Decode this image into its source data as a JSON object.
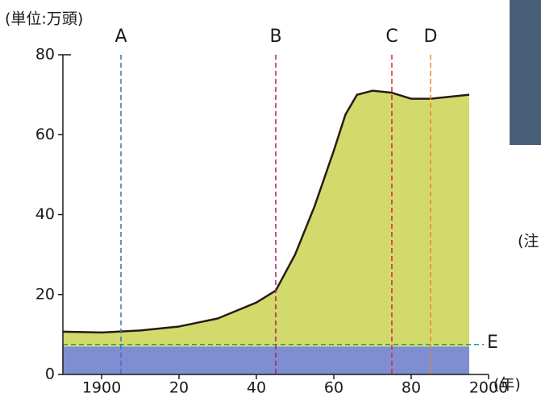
{
  "chart_data": {
    "type": "area",
    "unit_label": "(単位:万頭)",
    "x_label": "(年)",
    "x": [
      1890,
      1900,
      1910,
      1920,
      1930,
      1940,
      1945,
      1950,
      1955,
      1960,
      1963,
      1966,
      1970,
      1975,
      1980,
      1985,
      1990,
      1995
    ],
    "values": [
      10.7,
      10.5,
      11,
      12,
      14,
      18,
      21,
      30,
      42,
      56,
      65,
      70,
      71,
      70.5,
      69,
      69,
      69.5,
      70
    ],
    "color": "#d2da6c",
    "line_color": "#2b1a14",
    "band": {
      "value": 7,
      "color": "#7e8ed0"
    },
    "xlim": [
      1890,
      2000
    ],
    "ylim": [
      0,
      80
    ],
    "xticks": [
      1900,
      {
        "value": 1920,
        "label": "20"
      },
      {
        "value": 1940,
        "label": "40"
      },
      {
        "value": 1960,
        "label": "60"
      },
      {
        "value": 1980,
        "label": "80"
      },
      2000
    ],
    "yticks": [
      0,
      20,
      40,
      60,
      80
    ],
    "vertical_lines": [
      {
        "label": "A",
        "x": 1905,
        "color": "#3a6fc4"
      },
      {
        "label": "B",
        "x": 1945,
        "color": "#b0185a"
      },
      {
        "label": "C",
        "x": 1975,
        "color": "#e0202a"
      },
      {
        "label": "D",
        "x": 1985,
        "color": "#f0821e"
      }
    ],
    "horizontal_line": {
      "label": "E",
      "y": 7.5,
      "color": "#1f9a7a"
    },
    "side_note": "(注"
  }
}
